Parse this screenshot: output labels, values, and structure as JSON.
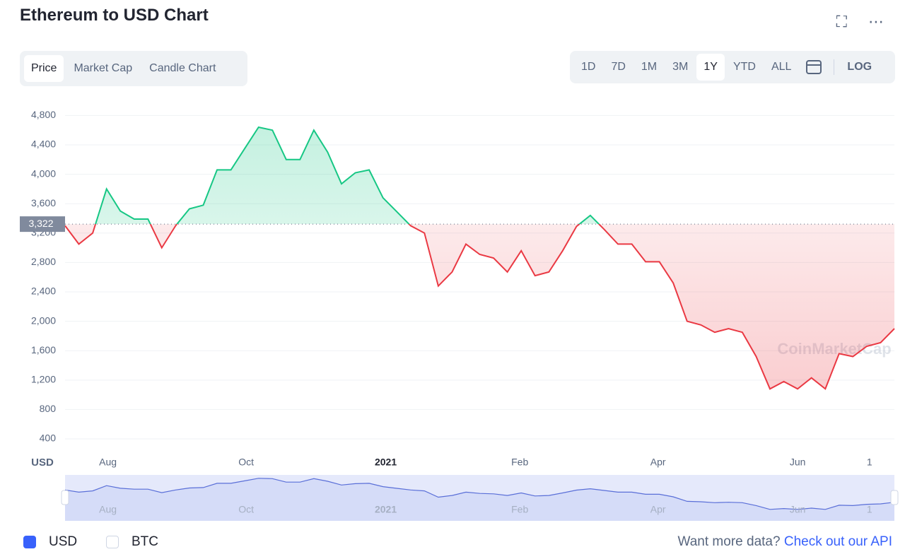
{
  "header": {
    "title": "Ethereum to USD Chart",
    "tabs": [
      "Price",
      "Market Cap",
      "Candle Chart"
    ],
    "ranges": [
      "1D",
      "7D",
      "1M",
      "3M",
      "1Y",
      "YTD",
      "ALL"
    ],
    "log": "LOG"
  },
  "chart_data": {
    "type": "line",
    "ylabel": "USD",
    "watermark": "CoinMarketCap",
    "series": [
      {
        "name": "Price",
        "values": [
          3300,
          3050,
          3200,
          3800,
          3500,
          3390,
          3390,
          3000,
          3300,
          3530,
          3580,
          4060,
          4060,
          4350,
          4640,
          4600,
          4200,
          4200,
          4600,
          4300,
          3870,
          4020,
          4060,
          3680,
          3490,
          3300,
          3200,
          2480,
          2670,
          3050,
          2910,
          2860,
          2670,
          2960,
          2620,
          2670,
          2960,
          3290,
          3440,
          3250,
          3050,
          3050,
          2810,
          2810,
          2520,
          2000,
          1950,
          1850,
          1900,
          1850,
          1520,
          1080,
          1180,
          1080,
          1230,
          1080,
          1560,
          1520,
          1660,
          1710,
          1900
        ]
      }
    ],
    "colors": {
      "above": "#16c784",
      "below": "#ea3943"
    },
    "reference": {
      "value": 3322,
      "label": "3,322"
    },
    "xlim": [
      0,
      60
    ],
    "xticks": [
      {
        "value": 3.1,
        "label": "Aug"
      },
      {
        "value": 13.1,
        "label": "Oct"
      },
      {
        "value": 23.2,
        "label": "2021"
      },
      {
        "value": 32.9,
        "label": "Feb"
      },
      {
        "value": 42.9,
        "label": "Apr"
      },
      {
        "value": 53.0,
        "label": "Jun"
      },
      {
        "value": 58.2,
        "label": "1"
      }
    ],
    "ylim": [
      256,
      5025
    ],
    "yticks": [
      400,
      800,
      {
        "value": 1200,
        "label": "1,200"
      },
      {
        "value": 1600,
        "label": "1,600"
      },
      {
        "value": 2000,
        "label": "2,000"
      },
      {
        "value": 2400,
        "label": "2,400"
      },
      {
        "value": 2800,
        "label": "2,800"
      },
      {
        "value": 3200,
        "label": "3,200"
      },
      {
        "value": 3600,
        "label": "3,600"
      },
      {
        "value": 4000,
        "label": "4,000"
      },
      {
        "value": 4400,
        "label": "4,400"
      },
      {
        "value": 4800,
        "label": "4,800"
      }
    ],
    "grid": true
  },
  "footer": {
    "currencies": [
      "USD",
      "BTC"
    ],
    "api_prompt": "Want more data?",
    "api_link": "Check out our API"
  }
}
